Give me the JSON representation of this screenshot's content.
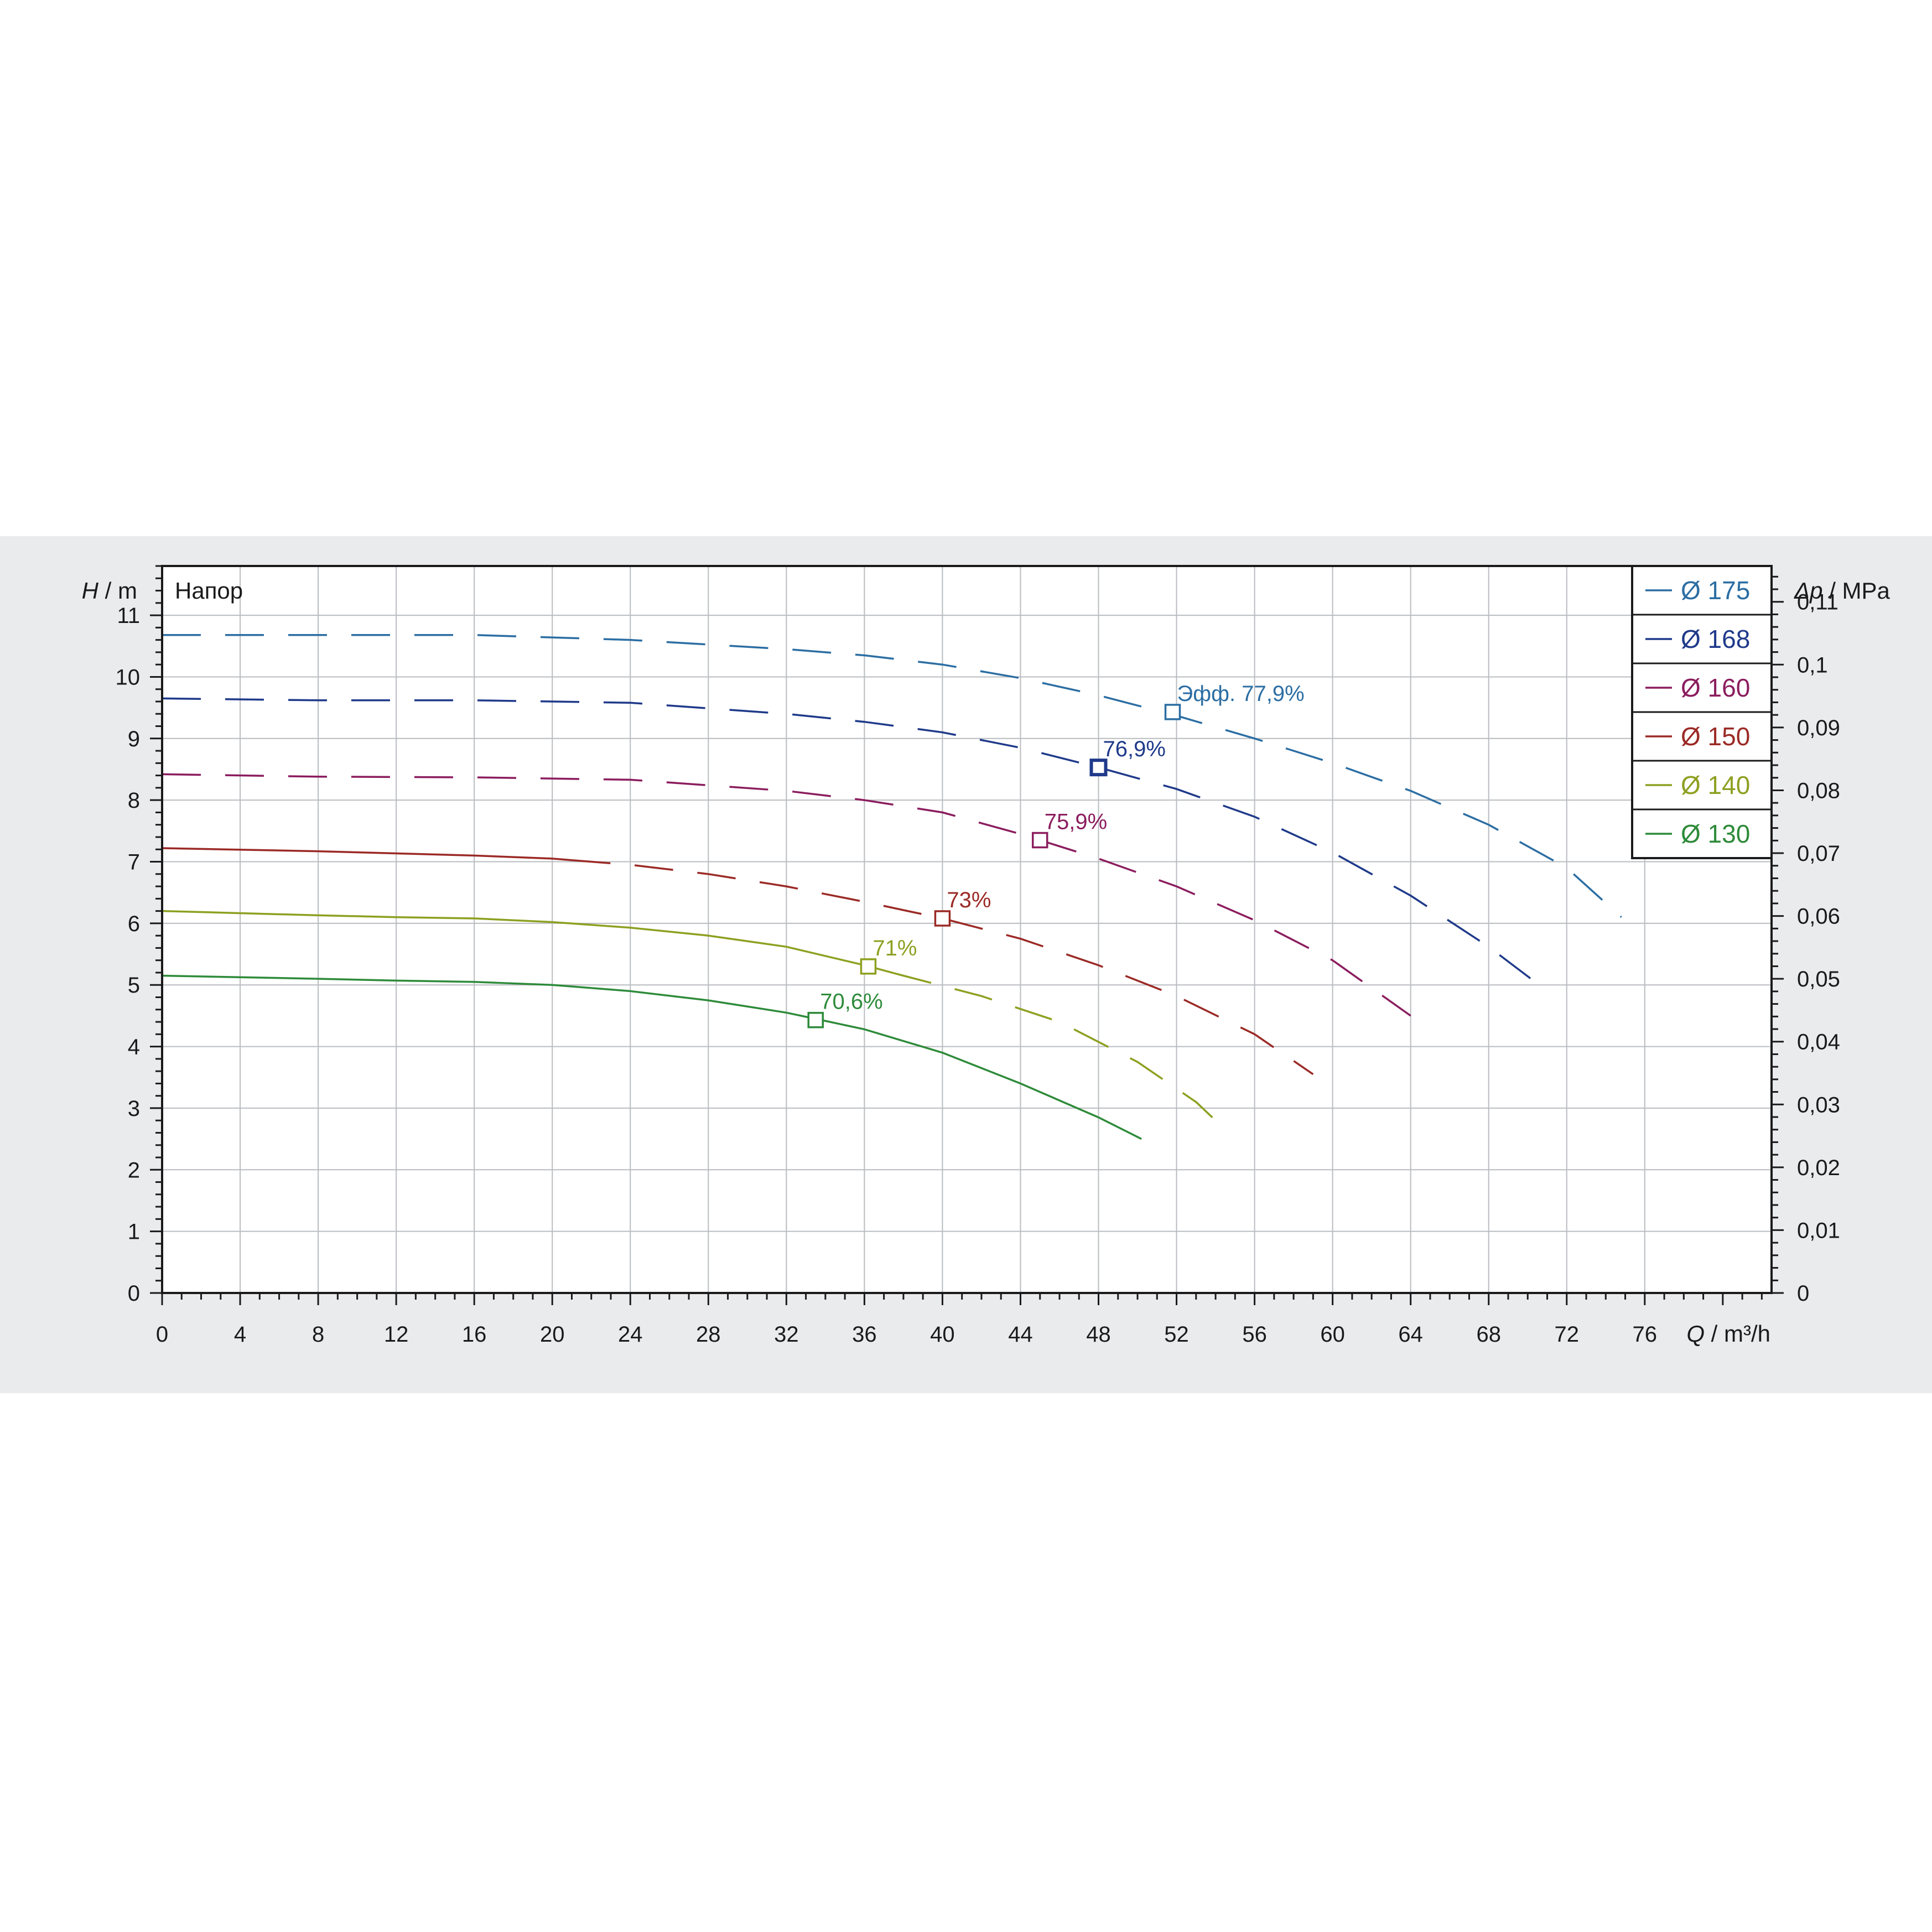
{
  "chart_data": {
    "type": "line",
    "panel_label": "Напор",
    "y_axis": {
      "symbol": "H",
      "unit": "m",
      "range": [
        0,
        11.8
      ],
      "ticks": [
        0,
        1,
        2,
        3,
        4,
        5,
        6,
        7,
        8,
        9,
        10,
        11
      ]
    },
    "y2_axis": {
      "symbol": "Δp",
      "unit": "MPa",
      "range": [
        0,
        0.1157
      ],
      "ticks": [
        "0",
        "0,01",
        "0,02",
        "0,03",
        "0,04",
        "0,05",
        "0,06",
        "0,07",
        "0,08",
        "0,09",
        "0,1",
        "0,11"
      ],
      "tick_values": [
        0,
        0.01,
        0.02,
        0.03,
        0.04,
        0.05,
        0.06,
        0.07,
        0.08,
        0.09,
        0.1,
        0.11
      ]
    },
    "x_axis": {
      "symbol": "Q",
      "unit": "m³/h",
      "range": [
        0,
        82.5
      ],
      "ticks": [
        0,
        4,
        8,
        12,
        16,
        20,
        24,
        28,
        32,
        36,
        40,
        44,
        48,
        52,
        56,
        60,
        64,
        68,
        72,
        76
      ]
    },
    "grid": true,
    "legend_position": "top-right",
    "series": [
      {
        "name": "Ø 175",
        "color": "#2c6ea3",
        "solid_to": 0,
        "points": [
          [
            0,
            10.68
          ],
          [
            8,
            10.68
          ],
          [
            16,
            10.68
          ],
          [
            24,
            10.6
          ],
          [
            32,
            10.45
          ],
          [
            36,
            10.35
          ],
          [
            40,
            10.2
          ],
          [
            44,
            9.98
          ],
          [
            48,
            9.7
          ],
          [
            52,
            9.37
          ],
          [
            56,
            9.0
          ],
          [
            60,
            8.6
          ],
          [
            64,
            8.15
          ],
          [
            68,
            7.6
          ],
          [
            72,
            6.9
          ],
          [
            74.8,
            6.1
          ]
        ],
        "marker": {
          "q": 51.8,
          "h": 9.43,
          "label": "77,9%",
          "prefix": "Эфф."
        }
      },
      {
        "name": "Ø 168",
        "color": "#1f3a8a",
        "solid_to": 0,
        "points": [
          [
            0,
            9.65
          ],
          [
            8,
            9.62
          ],
          [
            16,
            9.62
          ],
          [
            24,
            9.58
          ],
          [
            32,
            9.4
          ],
          [
            36,
            9.27
          ],
          [
            40,
            9.1
          ],
          [
            44,
            8.85
          ],
          [
            48,
            8.53
          ],
          [
            52,
            8.18
          ],
          [
            56,
            7.73
          ],
          [
            60,
            7.15
          ],
          [
            64,
            6.45
          ],
          [
            68,
            5.62
          ],
          [
            71,
            4.9
          ]
        ],
        "marker": {
          "q": 48.0,
          "h": 8.53,
          "label": "76,9%",
          "prefix": ""
        }
      },
      {
        "name": "Ø 160",
        "color": "#8b1d5e",
        "solid_to": 0,
        "points": [
          [
            0,
            8.42
          ],
          [
            8,
            8.38
          ],
          [
            16,
            8.37
          ],
          [
            24,
            8.33
          ],
          [
            32,
            8.15
          ],
          [
            36,
            8.0
          ],
          [
            40,
            7.8
          ],
          [
            44,
            7.45
          ],
          [
            45,
            7.35
          ],
          [
            48,
            7.05
          ],
          [
            52,
            6.6
          ],
          [
            56,
            6.05
          ],
          [
            60,
            5.4
          ],
          [
            64,
            4.5
          ]
        ],
        "marker": {
          "q": 45.0,
          "h": 7.35,
          "label": "75,9%",
          "prefix": ""
        }
      },
      {
        "name": "Ø 150",
        "color": "#9b2a26",
        "solid_to": 21,
        "points": [
          [
            0,
            7.22
          ],
          [
            8,
            7.17
          ],
          [
            16,
            7.1
          ],
          [
            20,
            7.05
          ],
          [
            24,
            6.95
          ],
          [
            28,
            6.8
          ],
          [
            32,
            6.6
          ],
          [
            36,
            6.35
          ],
          [
            40,
            6.08
          ],
          [
            44,
            5.75
          ],
          [
            48,
            5.32
          ],
          [
            52,
            4.82
          ],
          [
            56,
            4.2
          ],
          [
            59,
            3.55
          ]
        ],
        "marker": {
          "q": 40.0,
          "h": 6.08,
          "label": "73%",
          "prefix": ""
        }
      },
      {
        "name": "Ø 140",
        "color": "#8ea021",
        "solid_to": 37.5,
        "points": [
          [
            0,
            6.2
          ],
          [
            8,
            6.13
          ],
          [
            12,
            6.1
          ],
          [
            16,
            6.08
          ],
          [
            20,
            6.02
          ],
          [
            24,
            5.93
          ],
          [
            28,
            5.8
          ],
          [
            32,
            5.62
          ],
          [
            36,
            5.32
          ],
          [
            38,
            5.15
          ],
          [
            42,
            4.82
          ],
          [
            46,
            4.4
          ],
          [
            50,
            3.75
          ],
          [
            53,
            3.1
          ],
          [
            54,
            2.8
          ]
        ],
        "marker": {
          "q": 36.2,
          "h": 5.3,
          "label": "71%",
          "prefix": ""
        }
      },
      {
        "name": "Ø 130",
        "color": "#2e8b3a",
        "solid_to": 50.2,
        "points": [
          [
            0,
            5.15
          ],
          [
            8,
            5.1
          ],
          [
            12,
            5.07
          ],
          [
            16,
            5.05
          ],
          [
            20,
            5.0
          ],
          [
            24,
            4.9
          ],
          [
            28,
            4.75
          ],
          [
            32,
            4.55
          ],
          [
            33.5,
            4.45
          ],
          [
            36,
            4.28
          ],
          [
            40,
            3.9
          ],
          [
            44,
            3.4
          ],
          [
            48,
            2.85
          ],
          [
            50.2,
            2.5
          ]
        ],
        "marker": {
          "q": 33.5,
          "h": 4.43,
          "label": "70,6%",
          "prefix": ""
        }
      }
    ]
  }
}
